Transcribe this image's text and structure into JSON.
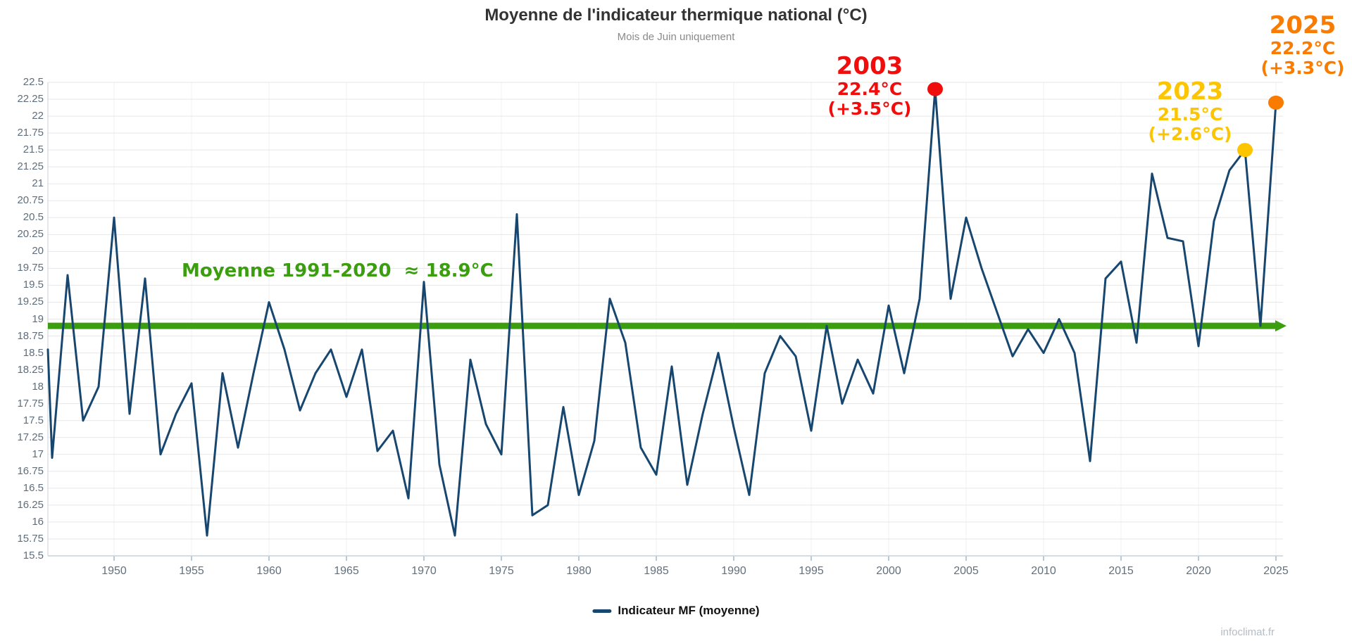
{
  "title": "Moyenne de l'indicateur thermique national (°C)",
  "subtitle": "Mois de Juin uniquement",
  "baseline_label": "Moyenne 1991-2020  ≈ 18.9°C",
  "legend": {
    "series_label": "Indicateur MF (moyenne)"
  },
  "watermark": "infoclimat.fr",
  "annotations": {
    "y2003": {
      "year": "2003",
      "temp": "22.4°C",
      "anomaly": "(+3.5°C)",
      "color": "#f20d0d"
    },
    "y2023": {
      "year": "2023",
      "temp": "21.5°C",
      "anomaly": "(+2.6°C)",
      "color": "#fdc400"
    },
    "y2025": {
      "year": "2025",
      "temp": "22.2°C",
      "anomaly": "(+3.3°C)",
      "color": "#f97b00"
    }
  },
  "chart_data": {
    "type": "line",
    "title": "Moyenne de l'indicateur thermique national (°C)",
    "subtitle": "Mois de Juin uniquement",
    "series_name": "Indicateur MF (moyenne)",
    "line_color": "#17466f",
    "grid": "on",
    "legend_position": "bottom",
    "ylim": [
      15.5,
      22.5
    ],
    "ytick_step": 0.25,
    "xticks": [
      1950,
      1955,
      1960,
      1965,
      1970,
      1975,
      1980,
      1985,
      1990,
      1995,
      2000,
      2005,
      2010,
      2015,
      2020,
      2025
    ],
    "baseline": {
      "value": 18.9,
      "label": "Moyenne 1991-2020  ≈ 18.9°C",
      "color": "#3b9e0e"
    },
    "x": [
      1945,
      1946,
      1947,
      1948,
      1949,
      1950,
      1951,
      1952,
      1953,
      1954,
      1955,
      1956,
      1957,
      1958,
      1959,
      1960,
      1961,
      1962,
      1963,
      1964,
      1965,
      1966,
      1967,
      1968,
      1969,
      1970,
      1971,
      1972,
      1973,
      1974,
      1975,
      1976,
      1977,
      1978,
      1979,
      1980,
      1981,
      1982,
      1983,
      1984,
      1985,
      1986,
      1987,
      1988,
      1989,
      1990,
      1991,
      1992,
      1993,
      1994,
      1995,
      1996,
      1997,
      1998,
      1999,
      2000,
      2001,
      2002,
      2003,
      2004,
      2005,
      2006,
      2007,
      2008,
      2009,
      2010,
      2011,
      2012,
      2013,
      2014,
      2015,
      2016,
      2017,
      2018,
      2019,
      2020,
      2021,
      2022,
      2023,
      2024,
      2025
    ],
    "values": [
      18.55,
      16.95,
      19.65,
      17.5,
      18.0,
      20.5,
      17.6,
      19.6,
      17.0,
      17.6,
      18.05,
      15.8,
      18.2,
      17.1,
      18.2,
      19.25,
      18.55,
      17.65,
      18.2,
      18.55,
      17.85,
      18.55,
      17.05,
      17.35,
      16.35,
      19.55,
      16.85,
      15.8,
      18.4,
      17.45,
      17.0,
      20.55,
      16.1,
      16.25,
      17.7,
      16.4,
      17.2,
      19.3,
      18.65,
      17.1,
      16.7,
      18.3,
      16.55,
      17.6,
      18.5,
      17.4,
      16.4,
      18.2,
      18.75,
      18.45,
      17.35,
      18.9,
      17.75,
      18.4,
      17.9,
      19.2,
      18.2,
      19.3,
      22.4,
      19.3,
      20.5,
      19.75,
      19.1,
      18.45,
      18.85,
      18.5,
      19.0,
      18.5,
      16.9,
      19.6,
      19.85,
      18.65,
      21.15,
      20.2,
      20.15,
      18.6,
      20.45,
      21.2,
      21.5,
      18.9,
      22.2
    ],
    "highlights": [
      {
        "year": 2003,
        "value": 22.4,
        "color": "#f20d0d"
      },
      {
        "year": 2023,
        "value": 21.5,
        "color": "#fdc400"
      },
      {
        "year": 2025,
        "value": 22.2,
        "color": "#f97b00"
      }
    ]
  },
  "colors": {
    "line": "#17466f",
    "baseline_green": "#3b9e0e",
    "grid_h": "#e7e7e7",
    "grid_v": "#f0f0f0",
    "axis": "#c9d2d9",
    "tick": "#b9c9d6",
    "axis_label": "#5e6e7c"
  }
}
